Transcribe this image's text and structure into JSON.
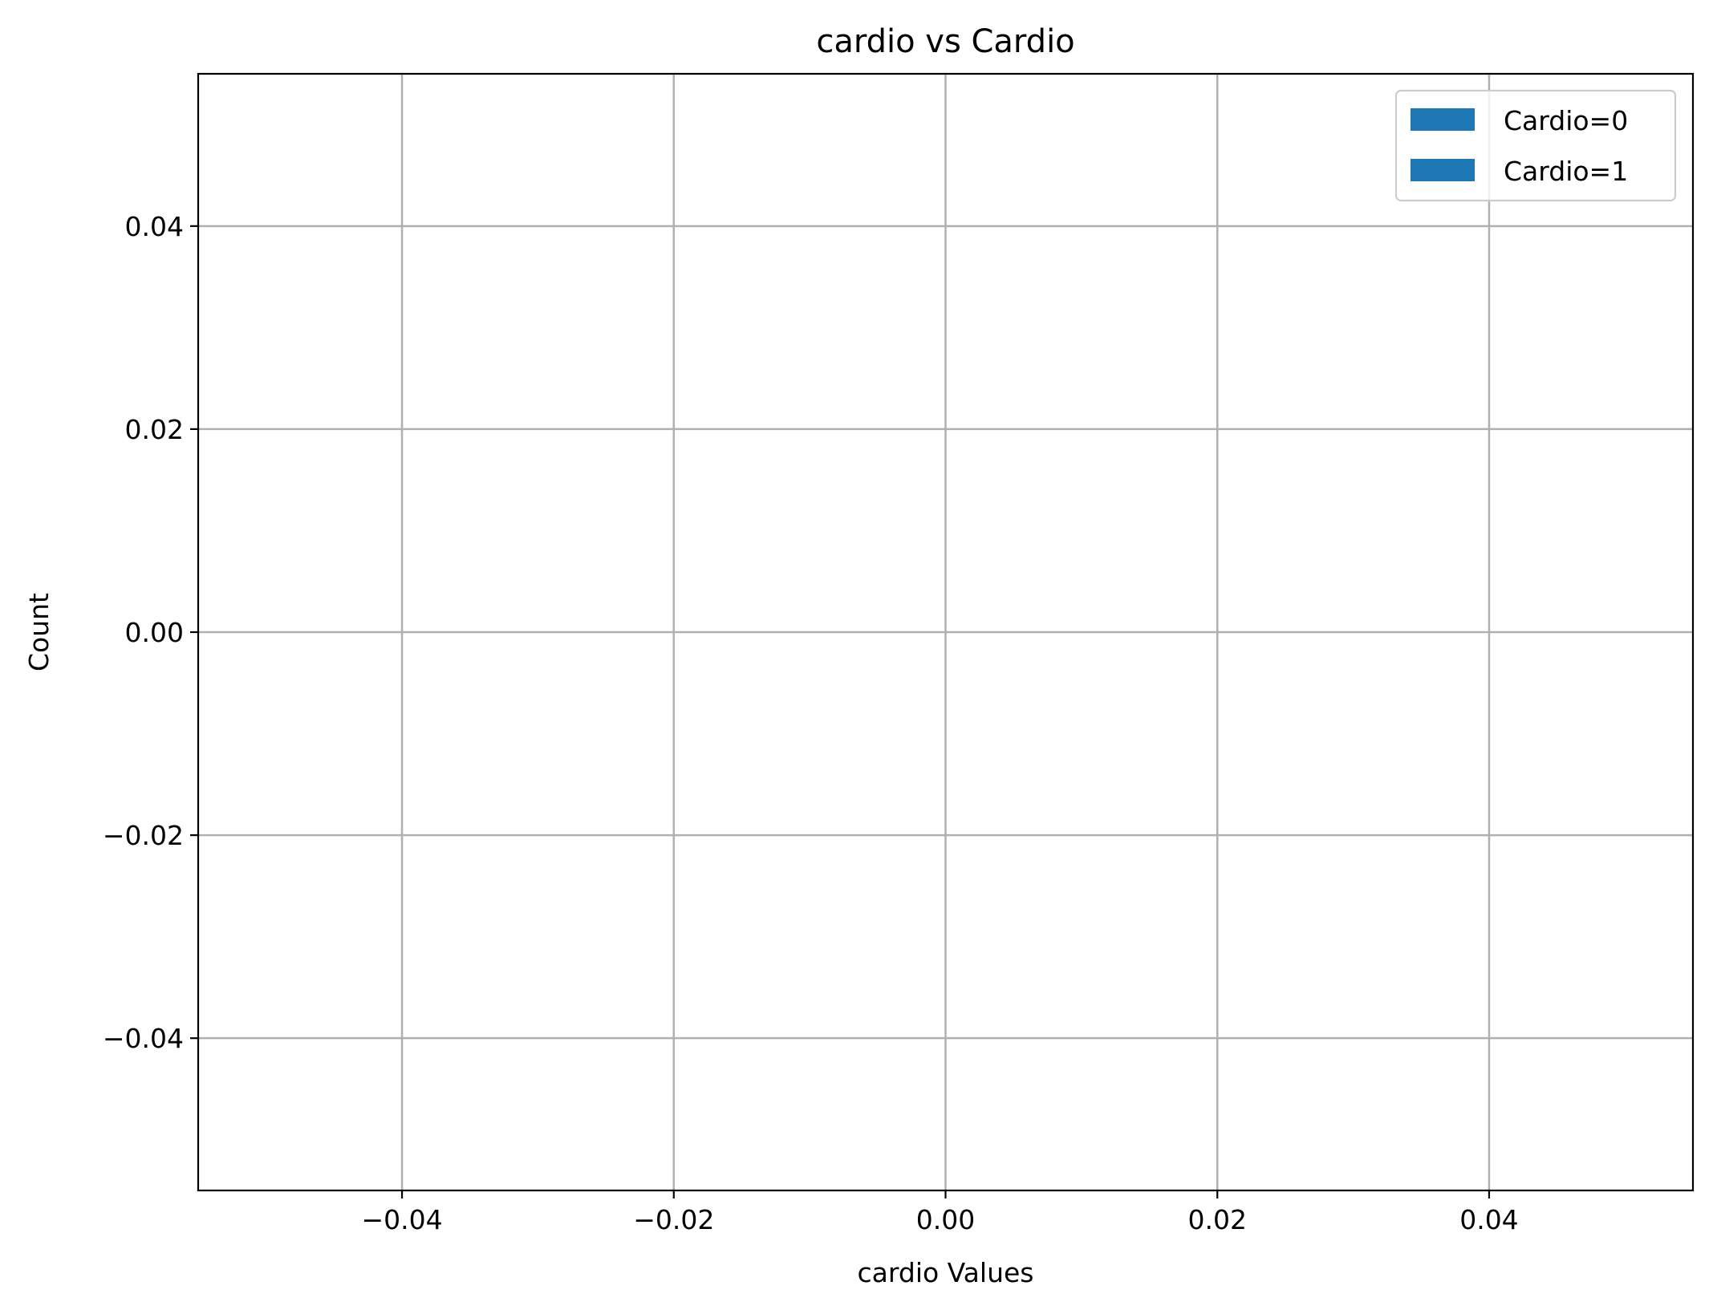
{
  "chart_data": {
    "type": "bar",
    "title": "cardio vs Cardio",
    "xlabel": "cardio Values",
    "ylabel": "Count",
    "xlim": [
      -0.055,
      0.055
    ],
    "ylim": [
      -0.055,
      0.055
    ],
    "x_ticks": [
      -0.04,
      -0.02,
      0.0,
      0.02,
      0.04
    ],
    "x_tick_labels": [
      "−0.04",
      "−0.02",
      "0.00",
      "0.02",
      "0.04"
    ],
    "y_ticks": [
      -0.04,
      -0.02,
      0.0,
      0.02,
      0.04
    ],
    "y_tick_labels": [
      "−0.04",
      "−0.02",
      "0.00",
      "0.02",
      "0.04"
    ],
    "grid": true,
    "legend_position": "top-right",
    "series": [
      {
        "name": "Cardio=0",
        "color": "#1f77b4",
        "values": []
      },
      {
        "name": "Cardio=1",
        "color": "#1f77b4",
        "values": []
      }
    ]
  }
}
